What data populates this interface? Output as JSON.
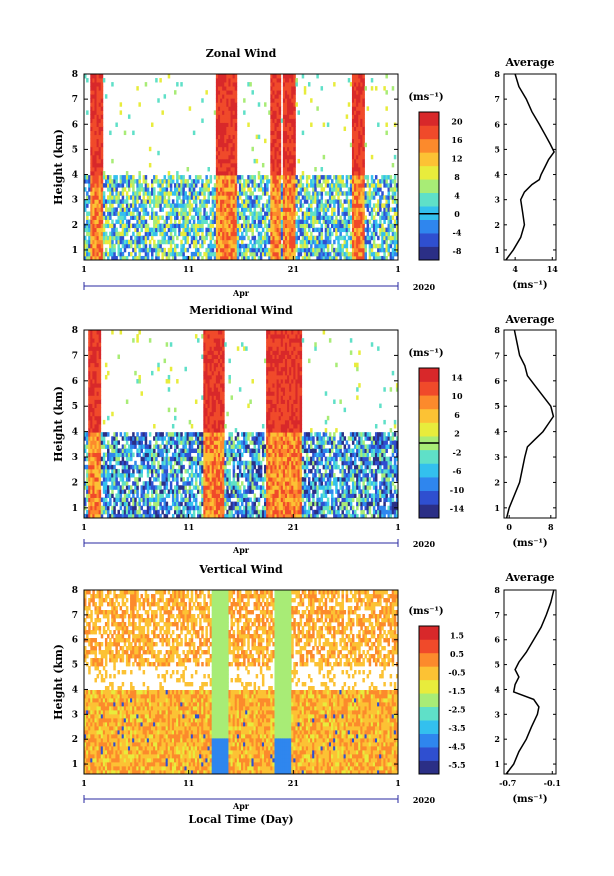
{
  "chart_data": [
    {
      "type": "heatmap",
      "title": "Zonal Wind",
      "ylabel": "Height (km)",
      "yticks": [
        "1",
        "2",
        "3",
        "4",
        "5",
        "6",
        "7",
        "8"
      ],
      "ylim": [
        0.6,
        8
      ],
      "xticks": [
        "1",
        "11",
        "21",
        "1"
      ],
      "month_label": "Apr",
      "year_label": "2020",
      "colorbar_unit": "(ms⁻¹)",
      "colorbar_ticks": [
        "20",
        "16",
        "12",
        "8",
        "4",
        "0",
        "-4",
        "-8"
      ],
      "colorbar_range": [
        -10,
        22
      ],
      "zero_line": 0,
      "profile": {
        "title": "Average",
        "xlabel": "(ms⁻¹)",
        "xticks": [
          "4",
          "14"
        ],
        "xlim": [
          1,
          15
        ],
        "heights": [
          0.6,
          1.0,
          1.5,
          2.0,
          2.5,
          3.0,
          3.3,
          3.6,
          3.8,
          4.0,
          4.3,
          4.6,
          4.9,
          5.2,
          5.6,
          6.0,
          6.5,
          7.0,
          7.5,
          8.0
        ],
        "values": [
          1.5,
          3.5,
          5.5,
          6.5,
          6.0,
          5.5,
          6.5,
          8.5,
          10.5,
          11.0,
          12.0,
          13.0,
          14.5,
          13.5,
          12.0,
          10.5,
          8.5,
          7.0,
          5.0,
          4.0
        ]
      }
    },
    {
      "type": "heatmap",
      "title": "Meridional Wind",
      "ylabel": "Height (km)",
      "yticks": [
        "1",
        "2",
        "3",
        "4",
        "5",
        "6",
        "7",
        "8"
      ],
      "ylim": [
        0.6,
        8
      ],
      "xticks": [
        "1",
        "11",
        "21",
        "1"
      ],
      "month_label": "Apr",
      "year_label": "2020",
      "colorbar_unit": "(ms⁻¹)",
      "colorbar_ticks": [
        "14",
        "10",
        "6",
        "2",
        "-2",
        "-6",
        "-10",
        "-14"
      ],
      "colorbar_range": [
        -16,
        16
      ],
      "zero_line": 0,
      "profile": {
        "title": "Average",
        "xlabel": "(ms⁻¹)",
        "xticks": [
          "0",
          "8"
        ],
        "xlim": [
          -1,
          9
        ],
        "heights": [
          0.6,
          1.0,
          1.5,
          2.0,
          2.5,
          3.0,
          3.4,
          3.7,
          4.0,
          4.3,
          4.6,
          5.0,
          5.4,
          5.8,
          6.2,
          6.6,
          7.0,
          7.5,
          8.0
        ],
        "values": [
          -0.5,
          0.0,
          1.0,
          2.0,
          2.5,
          3.0,
          3.5,
          5.0,
          6.5,
          7.5,
          8.5,
          8.0,
          6.5,
          5.0,
          3.5,
          3.0,
          2.0,
          1.5,
          1.0
        ]
      }
    },
    {
      "type": "heatmap",
      "title": "Vertical Wind",
      "ylabel": "Height (km)",
      "xlabel": "Local Time (Day)",
      "yticks": [
        "1",
        "2",
        "3",
        "4",
        "5",
        "6",
        "7",
        "8"
      ],
      "ylim": [
        0.6,
        8
      ],
      "xticks": [
        "1",
        "11",
        "21",
        "1"
      ],
      "month_label": "Apr",
      "year_label": "2020",
      "colorbar_unit": "(ms⁻¹)",
      "colorbar_ticks": [
        "1.5",
        "0.5",
        "-0.5",
        "-1.5",
        "-2.5",
        "-3.5",
        "-4.5",
        "-5.5"
      ],
      "colorbar_range": [
        -6,
        2
      ],
      "zero_line": null,
      "profile": {
        "title": "Average",
        "xlabel": "(ms⁻¹)",
        "xticks": [
          "-0.7",
          "-0.1"
        ],
        "xlim": [
          -0.75,
          -0.05
        ],
        "heights": [
          0.6,
          1.0,
          1.5,
          2.0,
          2.5,
          3.0,
          3.3,
          3.6,
          3.9,
          4.2,
          4.5,
          4.8,
          5.1,
          5.5,
          6.0,
          6.5,
          7.0,
          7.5,
          8.0
        ],
        "values": [
          -0.72,
          -0.62,
          -0.55,
          -0.45,
          -0.38,
          -0.3,
          -0.28,
          -0.35,
          -0.62,
          -0.6,
          -0.55,
          -0.6,
          -0.55,
          -0.45,
          -0.35,
          -0.25,
          -0.18,
          -0.12,
          -0.08
        ]
      }
    }
  ],
  "colors": {
    "scale": [
      "#2b2f86",
      "#2f4fd0",
      "#2f86ee",
      "#33c0ee",
      "#5fe0c8",
      "#a8ec76",
      "#e8ec3c",
      "#fcc234",
      "#fc8a2c",
      "#f04a2a",
      "#d8282a"
    ]
  }
}
